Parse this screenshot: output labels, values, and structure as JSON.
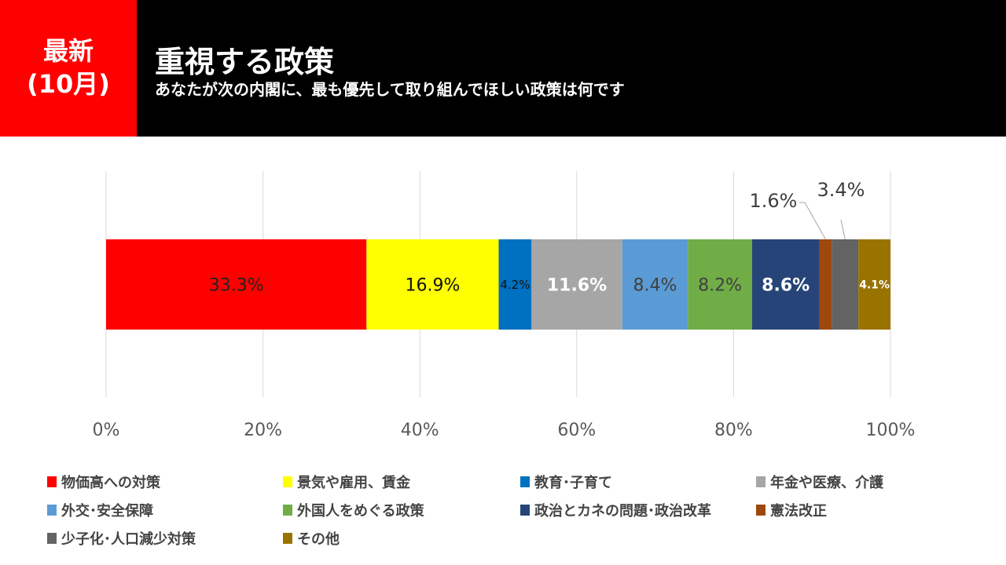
{
  "header": {
    "badge_line1": "最新",
    "badge_line2": "(10月)",
    "title": "重視する政策",
    "subtitle": "あなたが次の内閣に、最も優先して取り組んでほしい政策は何です"
  },
  "chart_data": {
    "type": "bar",
    "orientation": "horizontal-100%-stacked",
    "xlim": [
      0,
      100
    ],
    "x_ticks": [
      "0%",
      "20%",
      "40%",
      "60%",
      "80%",
      "100%"
    ],
    "grid": true,
    "legend_position": "bottom",
    "series": [
      {
        "name": "物価高への対策",
        "value": 33.3,
        "label": "33.3%",
        "color": "#ff0000",
        "label_color": "#222222"
      },
      {
        "name": "景気や雇用、賃金",
        "value": 16.9,
        "label": "16.9%",
        "color": "#ffff00",
        "label_color": "#111111"
      },
      {
        "name": "教育･子育て",
        "value": 4.2,
        "label": "4.2%",
        "color": "#0070c0",
        "label_color": "#111111"
      },
      {
        "name": "年金や医療、介護",
        "value": 11.6,
        "label": "11.6%",
        "color": "#a6a6a6",
        "label_color": "#ffffff"
      },
      {
        "name": "外交･安全保障",
        "value": 8.4,
        "label": "8.4%",
        "color": "#5b9bd5",
        "label_color": "#404040"
      },
      {
        "name": "外国人をめぐる政策",
        "value": 8.2,
        "label": "8.2%",
        "color": "#70ad47",
        "label_color": "#404040"
      },
      {
        "name": "政治とカネの問題･政治改革",
        "value": 8.6,
        "label": "8.6%",
        "color": "#264478",
        "label_color": "#ffffff"
      },
      {
        "name": "憲法改正",
        "value": 1.6,
        "label": "1.6%",
        "color": "#9e480e",
        "label_color": "#404040"
      },
      {
        "name": "少子化･人口減少対策",
        "value": 3.4,
        "label": "3.4%",
        "color": "#636363",
        "label_color": "#404040"
      },
      {
        "name": "その他",
        "value": 4.1,
        "label": "4.1%",
        "color": "#997300",
        "label_color": "#ffffff"
      }
    ]
  }
}
